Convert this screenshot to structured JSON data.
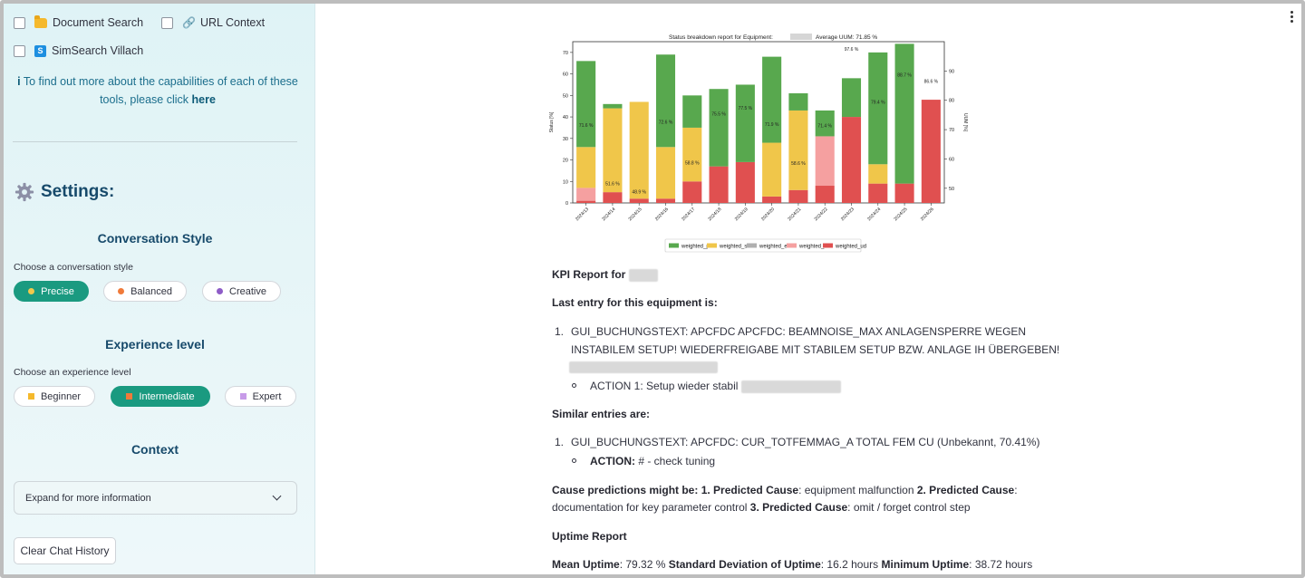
{
  "sidebar": {
    "tools": [
      {
        "label": "Document Search",
        "icon": "folder-icon"
      },
      {
        "label": "URL Context",
        "icon": "link-icon"
      },
      {
        "label": "SimSearch Villach",
        "icon": "simsearch-icon"
      }
    ],
    "info_prefix": "To find out more about the capabilities of each of these tools, please click ",
    "info_link": "here",
    "settings_title": "Settings:",
    "conversation": {
      "title": "Conversation Style",
      "subtitle": "Choose a conversation style",
      "options": [
        {
          "label": "Precise",
          "color": "#f2c94c",
          "selected": true
        },
        {
          "label": "Balanced",
          "color": "#f07a3a",
          "selected": false
        },
        {
          "label": "Creative",
          "color": "#8e5cc7",
          "selected": false
        }
      ]
    },
    "experience": {
      "title": "Experience level",
      "subtitle": "Choose an experience level",
      "options": [
        {
          "label": "Beginner",
          "color": "#f5b92c",
          "selected": false
        },
        {
          "label": "Intermediate",
          "color": "#f07a3a",
          "selected": true
        },
        {
          "label": "Expert",
          "color": "#c79be8",
          "selected": false
        }
      ]
    },
    "context": {
      "title": "Context",
      "expander_label": "Expand for more information"
    },
    "clear_button": "Clear Chat History"
  },
  "chart_data": {
    "type": "bar",
    "title": "Status breakdown report for Equipment:",
    "title_suffix": "Average UUM: 71.85 %",
    "ylabel": "Status [%]",
    "y2label": "UUM [%]",
    "ylim": [
      0,
      75
    ],
    "y2lim": [
      45,
      100
    ],
    "yticks": [
      0,
      10,
      20,
      30,
      40,
      50,
      60,
      70
    ],
    "y2ticks": [
      50,
      60,
      70,
      80,
      90
    ],
    "categories": [
      "2024/13",
      "2024/14",
      "2024/15",
      "2024/16",
      "2024/17",
      "2024/18",
      "2024/19",
      "2024/20",
      "2024/21",
      "2024/22",
      "2024/23",
      "2024/24",
      "2024/25",
      "2024/26"
    ],
    "series": [
      {
        "name": "weighted_ud",
        "color": "#e05050",
        "values": [
          1,
          5,
          2,
          2,
          10,
          17,
          19,
          3,
          6,
          8,
          40,
          9,
          9,
          48
        ]
      },
      {
        "name": "weighted_sd",
        "color": "#f5a0a0",
        "values": [
          6,
          0,
          0,
          0,
          0,
          0,
          0,
          0,
          0,
          23,
          0,
          0,
          0,
          0
        ]
      },
      {
        "name": "weighted_en",
        "color": "#b0b0b0",
        "values": [
          0,
          0,
          0,
          0,
          0,
          0,
          0,
          0,
          0,
          0,
          0,
          0,
          0,
          0
        ]
      },
      {
        "name": "weighted_sb",
        "color": "#f0c64a",
        "values": [
          19,
          39,
          45,
          24,
          25,
          0,
          0,
          25,
          37,
          0,
          0,
          9,
          0,
          0
        ]
      },
      {
        "name": "weighted_pr",
        "color": "#58a84e",
        "values": [
          40,
          2,
          0,
          43,
          15,
          36,
          36,
          40,
          8,
          12,
          18,
          52,
          65,
          0
        ]
      }
    ],
    "uum_labels": [
      "71.6 %",
      "51.6 %",
      "48.9 %",
      "72.6 %",
      "58.8 %",
      "75.5 %",
      "77.5 %",
      "71.9 %",
      "58.6 %",
      "71.4 %",
      "97.6 %",
      "79.4 %",
      "88.7 %",
      "86.6 %"
    ],
    "uum_values": [
      71.6,
      51.6,
      48.9,
      72.6,
      58.8,
      75.5,
      77.5,
      71.9,
      58.6,
      71.4,
      97.6,
      79.4,
      88.7,
      86.6
    ],
    "legend": [
      "weighted_pr",
      "weighted_sb",
      "weighted_en",
      "weighted_sd",
      "weighted_ud"
    ],
    "legend_colors": [
      "#58a84e",
      "#f0c64a",
      "#b0b0b0",
      "#f5a0a0",
      "#e05050"
    ],
    "legend_position": "bottom-center",
    "grid": false
  },
  "report": {
    "kpi_prefix": "KPI Report for",
    "last_entry_heading": "Last entry for this equipment is:",
    "last_entry_item_line1": "GUI_BUCHUNGSTEXT: APCFDC APCFDC: BEAMNOISE_MAX ANLAGENSPERRE WEGEN",
    "last_entry_item_line2": "INSTABILEM SETUP! WIEDERFREIGABE MIT STABILEM SETUP BZW. ANLAGE IH ÜBERGEBEN!",
    "last_entry_action": "ACTION 1: Setup wieder stabil",
    "similar_heading": "Similar entries are:",
    "similar_item": "GUI_BUCHUNGSTEXT: APCFDC: CUR_TOTFEMMAG_A TOTAL FEM CU (Unbekannt, 70.41%)",
    "similar_action_label": "ACTION:",
    "similar_action_text": " # - check tuning",
    "cause_prefix": "Cause predictions might be: ",
    "cause1_label": "1. Predicted Cause",
    "cause1_text": ": equipment malfunction ",
    "cause2_label": "2. Predicted Cause",
    "cause2_text_a": ":",
    "cause2_text_b": "documentation for key parameter control ",
    "cause3_label": "3. Predicted Cause",
    "cause3_text": ": omit / forget control step",
    "uptime_heading": "Uptime Report",
    "mean_label": "Mean Uptime",
    "mean_value": ": 79.32 % ",
    "std_label": "Standard Deviation of Uptime",
    "std_value": ": 16.2 hours ",
    "min_label": "Minimum Uptime",
    "min_value": ": 38.72 hours",
    "list_num": "1."
  }
}
